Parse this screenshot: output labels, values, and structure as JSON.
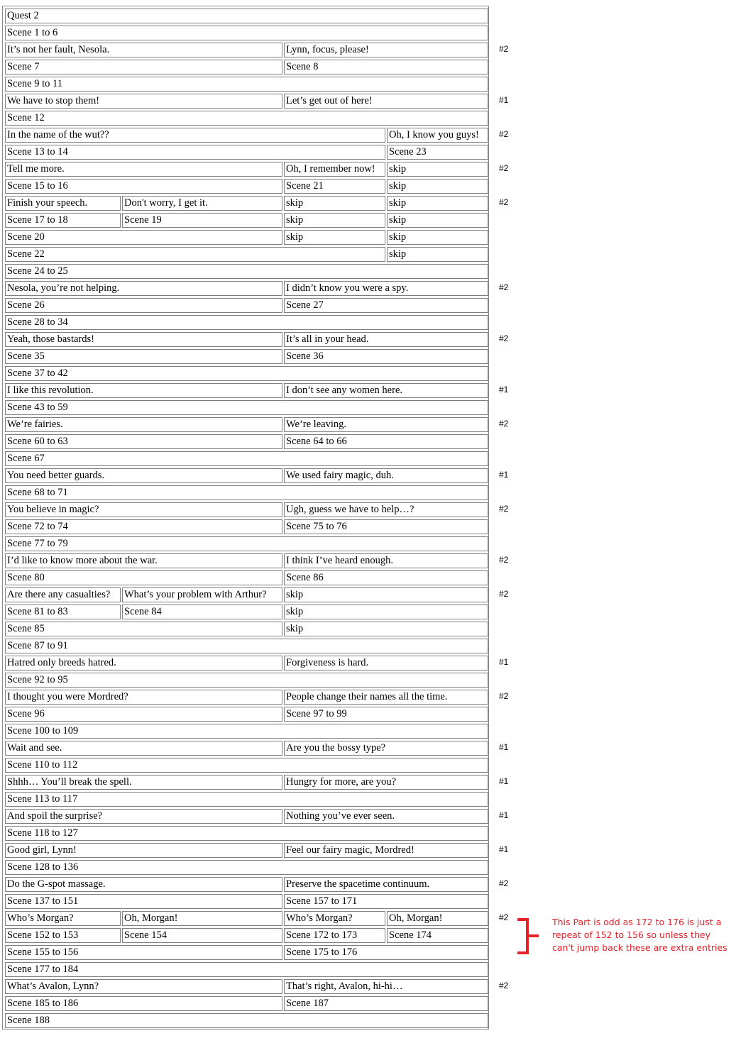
{
  "rows": [
    {
      "cells": [
        "Quest 2"
      ]
    },
    {
      "cells": [
        "Scene 1 to 6"
      ]
    },
    {
      "cells": [
        "It’s not her fault, Nesola.",
        "Lynn, focus, please!"
      ],
      "note": "#2"
    },
    {
      "cells": [
        "Scene 7",
        "Scene 8"
      ]
    },
    {
      "cells": [
        "Scene 9 to 11"
      ]
    },
    {
      "cells": [
        "We have to stop them!",
        "Let’s get out of here!"
      ],
      "note": "#1"
    },
    {
      "cells": [
        "Scene 12"
      ]
    },
    {
      "cells": [
        "In the name of the wut??",
        "Oh, I know you guys!"
      ],
      "note": "#2"
    },
    {
      "cells": [
        "Scene 13 to 14",
        "Scene 23"
      ]
    },
    {
      "cells": [
        "Tell me more.",
        "Oh, I remember now!",
        "skip"
      ],
      "note": "#2"
    },
    {
      "cells": [
        "Scene 15 to 16",
        "Scene 21",
        "skip"
      ]
    },
    {
      "cells": [
        "Finish your speech.",
        "Don't worry, I get it.",
        "skip",
        "skip"
      ],
      "note": "#2"
    },
    {
      "cells": [
        "Scene 17 to 18",
        "Scene 19",
        "skip",
        "skip"
      ]
    },
    {
      "cells": [
        "Scene 20",
        "skip",
        "skip"
      ]
    },
    {
      "cells": [
        "Scene 22",
        "skip"
      ]
    },
    {
      "cells": [
        "Scene 24 to 25"
      ]
    },
    {
      "cells": [
        "Nesola, you’re not helping.",
        "I didn’t know you were a spy."
      ],
      "note": "#2"
    },
    {
      "cells": [
        "Scene 26",
        "Scene 27"
      ]
    },
    {
      "cells": [
        "Scene 28 to 34"
      ]
    },
    {
      "cells": [
        "Yeah, those bastards!",
        "It’s all in your head."
      ],
      "note": "#2"
    },
    {
      "cells": [
        "Scene 35",
        "Scene 36"
      ]
    },
    {
      "cells": [
        "Scene 37 to 42"
      ]
    },
    {
      "cells": [
        "I like this revolution.",
        "I don’t see any women here."
      ],
      "note": "#1"
    },
    {
      "cells": [
        "Scene 43 to 59"
      ]
    },
    {
      "cells": [
        "We’re fairies.",
        "We’re leaving."
      ],
      "note": "#2"
    },
    {
      "cells": [
        "Scene 60 to 63",
        "Scene 64 to 66"
      ]
    },
    {
      "cells": [
        "Scene 67"
      ]
    },
    {
      "cells": [
        "You need better guards.",
        "We used fairy magic, duh."
      ],
      "note": "#1"
    },
    {
      "cells": [
        "Scene 68 to 71"
      ]
    },
    {
      "cells": [
        "You believe in magic?",
        "Ugh, guess we have to help…?"
      ],
      "note": "#2"
    },
    {
      "cells": [
        "Scene 72 to 74",
        "Scene 75 to 76"
      ]
    },
    {
      "cells": [
        "Scene 77 to 79"
      ]
    },
    {
      "cells": [
        "I’d like to know more about the war.",
        "I think I’ve heard enough."
      ],
      "note": "#2"
    },
    {
      "cells": [
        "Scene 80",
        "Scene 86"
      ]
    },
    {
      "cells": [
        "Are there any casualties?",
        "What’s your problem with Arthur?",
        "skip"
      ],
      "note": "#2"
    },
    {
      "cells": [
        "Scene 81 to 83",
        "Scene 84",
        "skip"
      ]
    },
    {
      "cells": [
        "Scene 85",
        "skip"
      ]
    },
    {
      "cells": [
        "Scene 87 to 91"
      ]
    },
    {
      "cells": [
        "Hatred only breeds hatred.",
        "Forgiveness is hard."
      ],
      "note": "#1"
    },
    {
      "cells": [
        "Scene 92 to 95"
      ]
    },
    {
      "cells": [
        "I thought you were Mordred?",
        "People change their names all the time."
      ],
      "note": "#2"
    },
    {
      "cells": [
        "Scene 96",
        "Scene 97 to 99"
      ]
    },
    {
      "cells": [
        "Scene 100 to 109"
      ]
    },
    {
      "cells": [
        "Wait and see.",
        "Are you the bossy type?"
      ],
      "note": "#1"
    },
    {
      "cells": [
        "Scene 110 to 112"
      ]
    },
    {
      "cells": [
        "Shhh… You’ll break the spell.",
        "Hungry for more, are you?"
      ],
      "note": "#1"
    },
    {
      "cells": [
        "Scene 113 to 117"
      ]
    },
    {
      "cells": [
        "And spoil the surprise?",
        "Nothing you’ve ever seen."
      ],
      "note": "#1"
    },
    {
      "cells": [
        "Scene 118 to 127"
      ]
    },
    {
      "cells": [
        "Good girl, Lynn!",
        "Feel our fairy magic, Mordred!"
      ],
      "note": "#1"
    },
    {
      "cells": [
        "Scene 128 to 136"
      ]
    },
    {
      "cells": [
        "Do the G-spot massage.",
        "Preserve the spacetime continuum."
      ],
      "note": "#2"
    },
    {
      "cells": [
        "Scene 137 to 151",
        "Scene 157 to 171"
      ]
    },
    {
      "cells": [
        "Who’s Morgan?",
        "Oh, Morgan!",
        "Who’s Morgan?",
        "Oh, Morgan!"
      ],
      "note": "#2"
    },
    {
      "cells": [
        "Scene 152 to 153",
        "Scene 154",
        "Scene 172 to 173",
        "Scene 174"
      ]
    },
    {
      "cells": [
        "Scene 155 to 156",
        "Scene 175 to 176"
      ]
    },
    {
      "cells": [
        "Scene 177 to 184"
      ]
    },
    {
      "cells": [
        "What’s Avalon, Lynn?",
        "That’s right, Avalon, hi-hi…"
      ],
      "note": "#2"
    },
    {
      "cells": [
        "Scene 185 to 186",
        "Scene 187"
      ]
    },
    {
      "cells": [
        "Scene 188"
      ]
    }
  ],
  "annotation": {
    "text": "This Part is odd as 172 to 176 is just a repeat of 152 to 156 so unless they can't jump back these are extra entries",
    "color": "#e8202a"
  }
}
